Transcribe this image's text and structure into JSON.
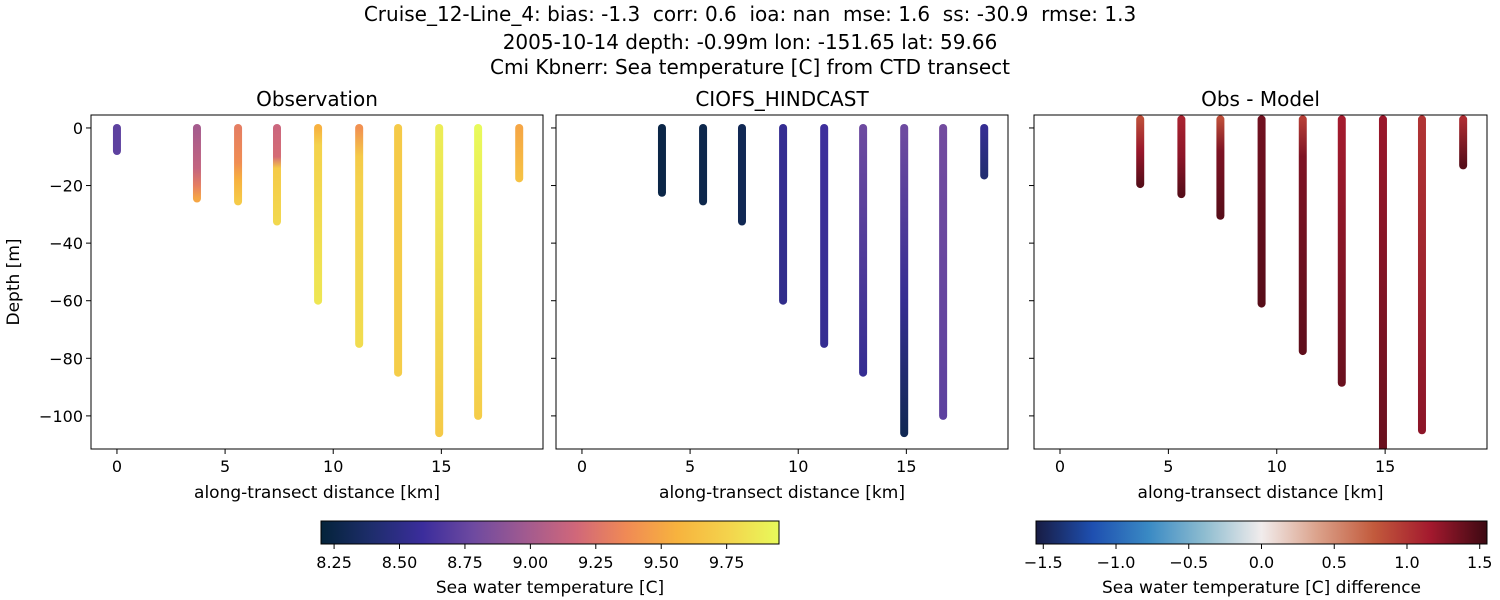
{
  "figure": {
    "title_lines": [
      "Cruise_12-Line_4: bias: -1.3  corr: 0.6  ioa: nan  mse: 1.6  ss: -30.9  rmse: 1.3",
      "2005-10-14 depth: -0.99m lon: -151.65 lat: 59.66",
      "Cmi Kbnerr: Sea temperature [C] from CTD transect"
    ]
  },
  "chart_data": [
    {
      "type": "scatter",
      "title": "Observation",
      "xlabel": "along-transect distance [km]",
      "ylabel": "Depth [m]",
      "xlim": [
        -1.2,
        19.7
      ],
      "ylim": [
        -111.5,
        4.5
      ],
      "x_ticks": [
        0,
        5,
        10,
        15
      ],
      "x_tick_labels": [
        "0",
        "5",
        "10",
        "15"
      ],
      "y_ticks": [
        0,
        -20,
        -40,
        -60,
        -80,
        -100
      ],
      "y_tick_labels": [
        "0",
        "−20",
        "−40",
        "−60",
        "−80",
        "−100"
      ],
      "colormap": "thermal",
      "clim": [
        8.2,
        9.95
      ],
      "profiles": [
        {
          "x": 0.0,
          "bottom": -8,
          "values": [
            [
              0,
              8.72
            ],
            [
              -8,
              8.72
            ]
          ]
        },
        {
          "x": 3.7,
          "bottom": -24.5,
          "values": [
            [
              0,
              9.0
            ],
            [
              -14,
              9.12
            ],
            [
              -20,
              9.3
            ],
            [
              -24.5,
              9.5
            ]
          ]
        },
        {
          "x": 5.6,
          "bottom": -25.5,
          "values": [
            [
              0,
              9.3
            ],
            [
              -12,
              9.38
            ],
            [
              -18,
              9.55
            ],
            [
              -25.5,
              9.7
            ]
          ]
        },
        {
          "x": 7.4,
          "bottom": -32.5,
          "values": [
            [
              0,
              9.15
            ],
            [
              -10,
              9.2
            ],
            [
              -14,
              9.7
            ],
            [
              -32.5,
              9.78
            ]
          ]
        },
        {
          "x": 9.3,
          "bottom": -60,
          "values": [
            [
              0,
              9.55
            ],
            [
              -6,
              9.75
            ],
            [
              -60,
              9.85
            ]
          ]
        },
        {
          "x": 11.2,
          "bottom": -75,
          "values": [
            [
              0,
              9.4
            ],
            [
              -10,
              9.7
            ],
            [
              -20,
              9.75
            ],
            [
              -75,
              9.8
            ]
          ]
        },
        {
          "x": 13.0,
          "bottom": -85,
          "values": [
            [
              0,
              9.7
            ],
            [
              -85,
              9.72
            ]
          ]
        },
        {
          "x": 14.9,
          "bottom": -106,
          "values": [
            [
              -2,
              9.88
            ],
            [
              -106,
              9.7
            ]
          ]
        },
        {
          "x": 16.7,
          "bottom": -100,
          "values": [
            [
              0,
              9.95
            ],
            [
              -45,
              9.82
            ],
            [
              -100,
              9.72
            ]
          ]
        },
        {
          "x": 18.6,
          "bottom": -17.5,
          "values": [
            [
              0,
              9.5
            ],
            [
              -17.5,
              9.65
            ]
          ]
        }
      ]
    },
    {
      "type": "scatter",
      "title": "CIOFS_HINDCAST",
      "xlabel": "along-transect distance [km]",
      "xlim": [
        -1.2,
        19.7
      ],
      "ylim": [
        -111.5,
        4.5
      ],
      "x_ticks": [
        0,
        5,
        10,
        15
      ],
      "x_tick_labels": [
        "0",
        "5",
        "10",
        "15"
      ],
      "colormap": "thermal",
      "clim": [
        8.2,
        9.95
      ],
      "profiles": [
        {
          "x": 3.7,
          "bottom": -22.5,
          "values": [
            [
              0,
              8.25
            ],
            [
              -22.5,
              8.25
            ]
          ]
        },
        {
          "x": 5.6,
          "bottom": -25.5,
          "values": [
            [
              0,
              8.27
            ],
            [
              -25.5,
              8.27
            ]
          ]
        },
        {
          "x": 7.4,
          "bottom": -32.5,
          "values": [
            [
              0,
              8.3
            ],
            [
              -32.5,
              8.3
            ]
          ]
        },
        {
          "x": 9.3,
          "bottom": -60,
          "values": [
            [
              0,
              8.55
            ],
            [
              -60,
              8.52
            ]
          ]
        },
        {
          "x": 11.2,
          "bottom": -75,
          "values": [
            [
              0,
              8.6
            ],
            [
              -75,
              8.55
            ]
          ]
        },
        {
          "x": 13.0,
          "bottom": -85,
          "values": [
            [
              0,
              8.78
            ],
            [
              -85,
              8.55
            ]
          ]
        },
        {
          "x": 14.9,
          "bottom": -106,
          "values": [
            [
              -2,
              8.78
            ],
            [
              -60,
              8.55
            ],
            [
              -106,
              8.3
            ]
          ]
        },
        {
          "x": 16.7,
          "bottom": -100,
          "values": [
            [
              0,
              8.8
            ],
            [
              -100,
              8.72
            ]
          ]
        },
        {
          "x": 18.6,
          "bottom": -16.5,
          "values": [
            [
              0,
              8.55
            ],
            [
              -16.5,
              8.42
            ]
          ]
        }
      ]
    },
    {
      "type": "scatter",
      "title": "Obs - Model",
      "xlabel": "along-transect distance [km]",
      "xlim": [
        -1.2,
        19.7
      ],
      "ylim": [
        -111.5,
        4.5
      ],
      "x_ticks": [
        0,
        5,
        10,
        15
      ],
      "x_tick_labels": [
        "0",
        "5",
        "10",
        "15"
      ],
      "colormap": "balance",
      "clim": [
        -1.55,
        1.55
      ],
      "profiles": [
        {
          "x": 3.7,
          "bottom": -19.5,
          "values": [
            [
              3,
              0.85
            ],
            [
              -8,
              1.2
            ],
            [
              -19.5,
              1.45
            ]
          ]
        },
        {
          "x": 5.6,
          "bottom": -23,
          "values": [
            [
              3,
              1.1
            ],
            [
              -10,
              1.25
            ],
            [
              -23,
              1.45
            ]
          ]
        },
        {
          "x": 7.4,
          "bottom": -30.5,
          "values": [
            [
              3,
              0.85
            ],
            [
              -8,
              1.3
            ],
            [
              -30.5,
              1.45
            ]
          ]
        },
        {
          "x": 9.3,
          "bottom": -61,
          "values": [
            [
              3,
              1.35
            ],
            [
              -61,
              1.45
            ]
          ]
        },
        {
          "x": 11.2,
          "bottom": -77.5,
          "values": [
            [
              3,
              0.95
            ],
            [
              -10,
              1.3
            ],
            [
              -77.5,
              1.42
            ]
          ]
        },
        {
          "x": 13.0,
          "bottom": -88.5,
          "values": [
            [
              3,
              1.15
            ],
            [
              -88.5,
              1.38
            ]
          ]
        },
        {
          "x": 14.9,
          "bottom": -111.5,
          "values": [
            [
              3,
              1.2
            ],
            [
              -111.5,
              1.38
            ]
          ]
        },
        {
          "x": 16.7,
          "bottom": -105,
          "values": [
            [
              3,
              1.0
            ],
            [
              -105,
              1.25
            ]
          ]
        },
        {
          "x": 18.6,
          "bottom": -13,
          "values": [
            [
              3,
              1.05
            ],
            [
              -13,
              1.45
            ]
          ]
        }
      ]
    }
  ],
  "colorbars": [
    {
      "label": "Sea water temperature [C]",
      "colormap": "thermal",
      "range": [
        8.2,
        9.95
      ],
      "ticks": [
        8.25,
        8.5,
        8.75,
        9.0,
        9.25,
        9.5,
        9.75
      ],
      "tick_labels": [
        "8.25",
        "8.50",
        "8.75",
        "9.00",
        "9.25",
        "9.50",
        "9.75"
      ]
    },
    {
      "label": "Sea water temperature [C] difference",
      "colormap": "balance",
      "range": [
        -1.55,
        1.55
      ],
      "ticks": [
        -1.5,
        -1.0,
        -0.5,
        0.0,
        0.5,
        1.0,
        1.5
      ],
      "tick_labels": [
        "−1.5",
        "−1.0",
        "−0.5",
        "0.0",
        "0.5",
        "1.0",
        "1.5"
      ]
    }
  ]
}
